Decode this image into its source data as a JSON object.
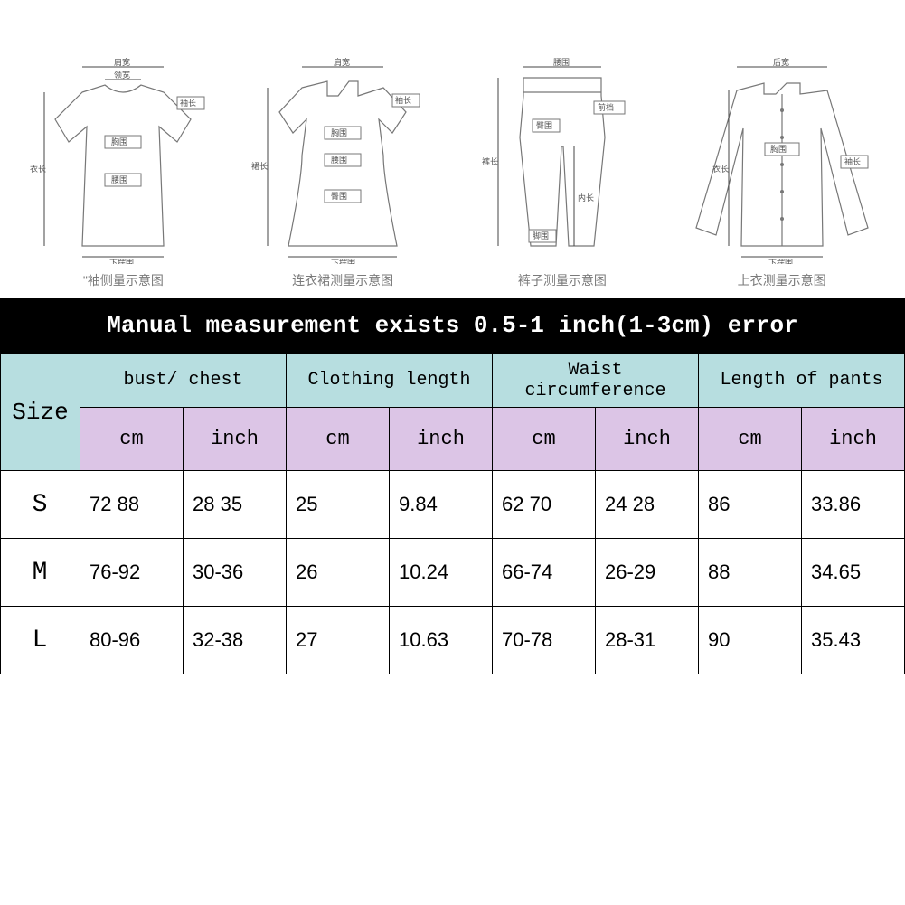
{
  "banner": "Manual measurement exists 0.5-1 inch(1-3cm) error",
  "garments": [
    {
      "caption": "\"袖侧量示意图"
    },
    {
      "caption": "连衣裙测量示意图"
    },
    {
      "caption": "裤子测量示意图"
    },
    {
      "caption": "上衣测量示意图"
    }
  ],
  "table": {
    "size_label": "Size",
    "columns": [
      {
        "label": "bust/ chest",
        "units": [
          "cm",
          "inch"
        ]
      },
      {
        "label": "Clothing length",
        "units": [
          "cm",
          "inch"
        ]
      },
      {
        "label": "Waist circumference",
        "units": [
          "cm",
          "inch"
        ]
      },
      {
        "label": "Length of pants",
        "units": [
          "cm",
          "inch"
        ]
      }
    ],
    "rows": [
      {
        "size": "S",
        "cells": [
          "72 88",
          "28 35",
          "25",
          "9.84",
          "62 70",
          "24 28",
          "86",
          "33.86"
        ]
      },
      {
        "size": "M",
        "cells": [
          "76-92",
          "30-36",
          "26",
          "10.24",
          "66-74",
          "26-29",
          "88",
          "34.65"
        ]
      },
      {
        "size": "L",
        "cells": [
          "80-96",
          "32-38",
          "27",
          "10.63",
          "70-78",
          "28-31",
          "90",
          "35.43"
        ]
      }
    ]
  },
  "colors": {
    "banner_bg": "#000000",
    "banner_fg": "#ffffff",
    "header_teal": "#b7dee0",
    "header_purple": "#dcc5e6",
    "border": "#000000",
    "page_bg": "#ffffff"
  },
  "dim_labels": {
    "shoulder": "肩宽",
    "neck": "领宽",
    "sleeve": "袖长",
    "chest": "胸围",
    "length": "衣长",
    "waist": "腰围",
    "hem": "下摆围",
    "hip": "臀围",
    "skirt_len": "裙长",
    "front_rise": "前档",
    "pant_len": "裤长",
    "inseam": "内长",
    "leg_open": "脚围",
    "back": "后宽"
  }
}
